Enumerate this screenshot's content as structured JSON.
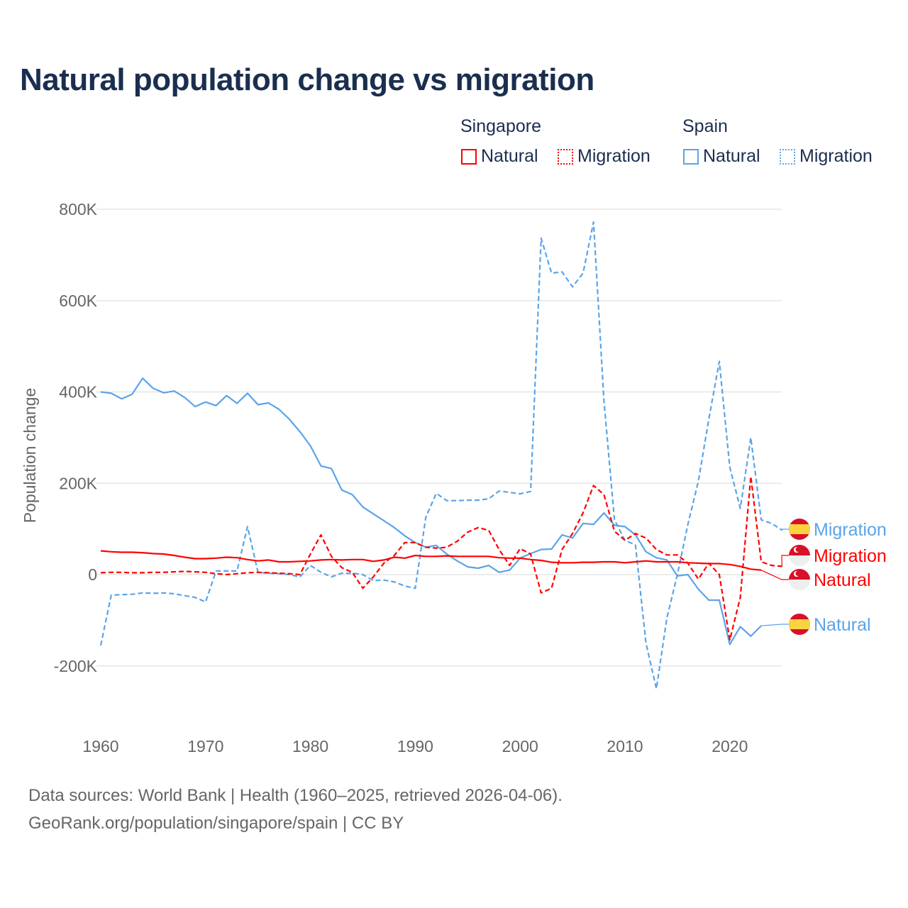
{
  "title": "Natural population change vs migration",
  "legend": {
    "groups": [
      {
        "name": "Singapore",
        "color": "#ff0000",
        "items": [
          "Natural",
          "Migration"
        ]
      },
      {
        "name": "Spain",
        "color": "#5ba4e8",
        "items": [
          "Natural",
          "Migration"
        ]
      }
    ]
  },
  "footer": {
    "line1": "Data sources: World Bank | Health (1960–2025, retrieved 2026-04-06).",
    "line2": "GeoRank.org/population/singapore/spain | CC BY"
  },
  "chart_data": {
    "type": "line",
    "title": "Natural population change vs migration",
    "xlabel": "",
    "ylabel": "Population change",
    "xlim": [
      1960,
      2025
    ],
    "ylim": [
      -250000,
      800000
    ],
    "x_ticks": [
      1960,
      1970,
      1980,
      1990,
      2000,
      2010,
      2020
    ],
    "x_tick_labels": [
      "1960",
      "1970",
      "1980",
      "1990",
      "2000",
      "2010",
      "2020"
    ],
    "y_ticks": [
      -200000,
      0,
      200000,
      400000,
      600000,
      800000
    ],
    "y_tick_labels": [
      "-200K",
      "0",
      "200K",
      "400K",
      "600K",
      "800K"
    ],
    "grid": true,
    "legend_placement": "top-right",
    "series": [
      {
        "name": "Spain Natural",
        "country": "Spain",
        "label": "Natural",
        "color": "#5ba4e8",
        "dash": false,
        "start": 1960,
        "values_k": [
          400,
          397,
          385,
          395,
          430,
          408,
          398,
          402,
          388,
          368,
          378,
          370,
          392,
          375,
          397,
          372,
          376,
          362,
          340,
          313,
          282,
          238,
          232,
          185,
          175,
          148,
          133,
          118,
          103,
          85,
          70,
          60,
          64,
          45,
          30,
          17,
          14,
          20,
          5,
          10,
          36,
          46,
          55,
          56,
          87,
          80,
          112,
          110,
          135,
          108,
          105,
          87,
          50,
          37,
          32,
          -3,
          0,
          -32,
          -56,
          -56,
          -153,
          -114,
          -135,
          -112
        ]
      },
      {
        "name": "Spain Migration",
        "country": "Spain",
        "label": "Migration",
        "color": "#5ba4e8",
        "dash": true,
        "start": 1960,
        "values_k": [
          -155,
          -45,
          -44,
          -43,
          -40,
          -41,
          -40,
          -42,
          -46,
          -50,
          -60,
          8,
          8,
          8,
          105,
          5,
          3,
          2,
          0,
          -5,
          20,
          5,
          -5,
          3,
          3,
          0,
          -13,
          -12,
          -16,
          -25,
          -30,
          125,
          178,
          162,
          162,
          163,
          163,
          166,
          183,
          180,
          177,
          182,
          737,
          660,
          663,
          630,
          660,
          772,
          380,
          120,
          75,
          65,
          -150,
          -250,
          -95,
          0,
          110,
          205,
          340,
          467,
          235,
          145,
          300,
          120,
          112,
          97
        ]
      },
      {
        "name": "Singapore Natural",
        "country": "Singapore",
        "label": "Natural",
        "color": "#ff0000",
        "dash": false,
        "start": 1960,
        "values_k": [
          52,
          50,
          49,
          49,
          48,
          46,
          45,
          42,
          38,
          35,
          35,
          36,
          38,
          37,
          33,
          30,
          32,
          28,
          28,
          29,
          30,
          32,
          33,
          32,
          33,
          33,
          29,
          32,
          38,
          36,
          42,
          40,
          40,
          41,
          40,
          40,
          40,
          40,
          37,
          36,
          36,
          33,
          31,
          27,
          26,
          26,
          27,
          27,
          28,
          28,
          26,
          28,
          30,
          28,
          28,
          28,
          26,
          25,
          24,
          24,
          22,
          18,
          12,
          10
        ]
      },
      {
        "name": "Singapore Migration",
        "country": "Singapore",
        "label": "Migration",
        "color": "#ff0000",
        "dash": true,
        "start": 1960,
        "values_k": [
          4,
          5,
          5,
          4,
          4,
          5,
          5,
          6,
          7,
          6,
          5,
          2,
          0,
          2,
          4,
          5,
          4,
          3,
          2,
          0,
          45,
          87,
          40,
          15,
          5,
          -30,
          -5,
          25,
          42,
          70,
          70,
          60,
          58,
          60,
          73,
          93,
          103,
          97,
          55,
          20,
          57,
          45,
          -40,
          -30,
          55,
          90,
          135,
          195,
          175,
          95,
          75,
          90,
          80,
          55,
          43,
          43,
          25,
          -10,
          25,
          0,
          -143,
          -50,
          215,
          28,
          20,
          18
        ]
      }
    ],
    "end_labels": [
      {
        "series": "Spain Migration",
        "text": "Migration",
        "flag": "spain-flag"
      },
      {
        "series": "Singapore Migration",
        "text": "Migration",
        "flag": "singapore-flag"
      },
      {
        "series": "Singapore Natural",
        "text": "Natural",
        "flag": "singapore-flag"
      },
      {
        "series": "Spain Natural",
        "text": "Natural",
        "flag": "spain-flag"
      }
    ]
  }
}
